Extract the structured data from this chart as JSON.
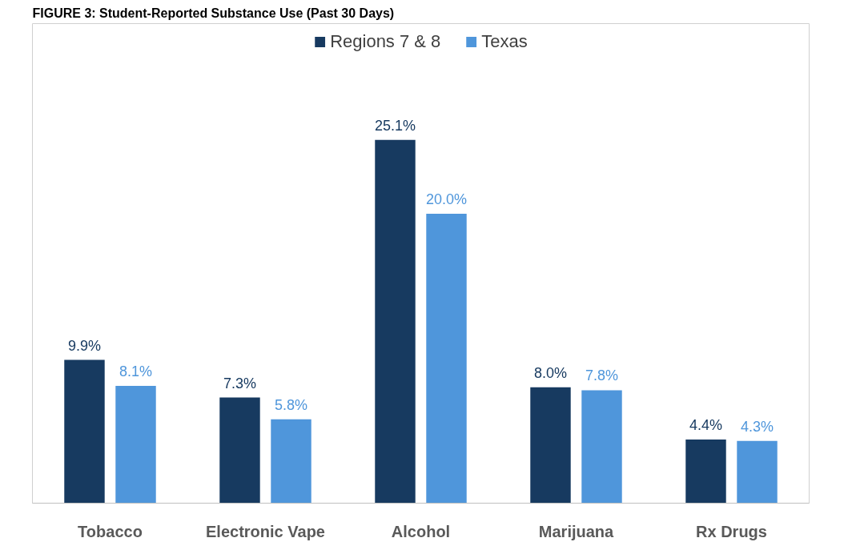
{
  "chart_data": {
    "type": "bar",
    "title": "FIGURE 3: Student-Reported Substance Use (Past 30 Days)",
    "categories": [
      "Tobacco",
      "Electronic Vape",
      "Alcohol",
      "Marijuana",
      "Rx Drugs"
    ],
    "series": [
      {
        "name": "Regions 7 & 8",
        "color": "#173a60",
        "values": [
          9.9,
          7.3,
          25.1,
          8.0,
          4.4
        ],
        "value_labels": [
          "9.9%",
          "7.3%",
          "25.1%",
          "8.0%",
          "4.4%"
        ]
      },
      {
        "name": "Texas",
        "color": "#4f96db",
        "values": [
          8.1,
          5.8,
          20.0,
          7.8,
          4.3
        ],
        "value_labels": [
          "8.1%",
          "5.8%",
          "20.0%",
          "7.8%",
          "4.3%"
        ]
      }
    ],
    "legend": "top",
    "grid": false
  }
}
